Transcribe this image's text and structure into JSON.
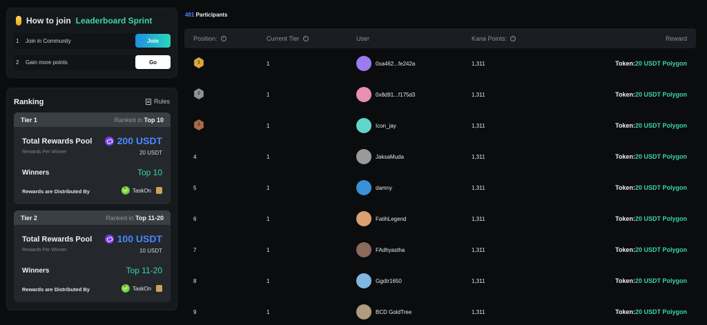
{
  "how_to_join": {
    "title_prefix": "How to join",
    "title_accent": "Leaderboard Sprint",
    "steps": [
      {
        "num": "1",
        "label": "Join in Community",
        "button": "Join"
      },
      {
        "num": "2",
        "label": "Gain more points",
        "button": "Go"
      }
    ]
  },
  "ranking": {
    "title": "Ranking",
    "rules_label": "Rules",
    "tiers": [
      {
        "name": "Tier 1",
        "ranked_prefix": "Ranked in",
        "ranked_value": "Top 10",
        "pool_label": "Total Rewards Pool",
        "pool_amount": "200 USDT",
        "per_winner_label": "Rewards Per Winner",
        "per_winner_value": "20 USDT",
        "winners_label": "Winners",
        "winners_value": "Top 10",
        "distributed_label": "Rewards are Distributed By",
        "distributor": "TaskOn"
      },
      {
        "name": "Tier 2",
        "ranked_prefix": "Ranked in",
        "ranked_value": "Top 11-20",
        "pool_label": "Total Rewards Pool",
        "pool_amount": "100 USDT",
        "per_winner_label": "Rewards Per Winner",
        "per_winner_value": "10 USDT",
        "winners_label": "Winners",
        "winners_value": "Top 11-20",
        "distributed_label": "Rewards are Distributed By",
        "distributor": "TaskOn"
      }
    ]
  },
  "participants": {
    "count": "481",
    "label": "Participants"
  },
  "table": {
    "headers": {
      "position": "Position:",
      "tier": "Current Tier",
      "user": "User",
      "points": "Kana Points:",
      "reward": "Reward"
    },
    "rows": [
      {
        "position": "1",
        "tier": "1",
        "user": "0xa462...fe242a",
        "points": "1,311",
        "reward_prefix": "Token:",
        "reward_value": "20 USDT Polygon",
        "avatar_color": "#9b7bf0",
        "medal": "gold"
      },
      {
        "position": "2",
        "tier": "1",
        "user": "0x8d91...f175d3",
        "points": "1,311",
        "reward_prefix": "Token:",
        "reward_value": "20 USDT Polygon",
        "avatar_color": "#e98fb0",
        "medal": "silver"
      },
      {
        "position": "3",
        "tier": "1",
        "user": "Icon_jay",
        "points": "1,311",
        "reward_prefix": "Token:",
        "reward_value": "20 USDT Polygon",
        "avatar_color": "#5fd6c8",
        "medal": "bronze"
      },
      {
        "position": "4",
        "tier": "1",
        "user": "JaksaMuda",
        "points": "1,311",
        "reward_prefix": "Token:",
        "reward_value": "20 USDT Polygon",
        "avatar_color": "#9a9a9a",
        "medal": ""
      },
      {
        "position": "5",
        "tier": "1",
        "user": "damny",
        "points": "1,311",
        "reward_prefix": "Token:",
        "reward_value": "20 USDT Polygon",
        "avatar_color": "#3a8fd6",
        "medal": ""
      },
      {
        "position": "6",
        "tier": "1",
        "user": "FatihLegend",
        "points": "1,311",
        "reward_prefix": "Token:",
        "reward_value": "20 USDT Polygon",
        "avatar_color": "#d9a070",
        "medal": ""
      },
      {
        "position": "7",
        "tier": "1",
        "user": "FAdhyastha",
        "points": "1,311",
        "reward_prefix": "Token:",
        "reward_value": "20 USDT Polygon",
        "avatar_color": "#8a6a5a",
        "medal": ""
      },
      {
        "position": "8",
        "tier": "1",
        "user": "Ggdtr1650",
        "points": "1,311",
        "reward_prefix": "Token:",
        "reward_value": "20 USDT Polygon",
        "avatar_color": "#7fb7e0",
        "medal": ""
      },
      {
        "position": "9",
        "tier": "1",
        "user": "BCD GoldTree",
        "points": "1,311",
        "reward_prefix": "Token:",
        "reward_value": "20 USDT Polygon",
        "avatar_color": "#b09a80",
        "medal": ""
      }
    ]
  },
  "colors": {
    "accent_green": "#3ad6a8",
    "accent_blue": "#4a86ff",
    "gold": "#d9a640",
    "silver": "#8e9296",
    "bronze": "#a86a48"
  }
}
